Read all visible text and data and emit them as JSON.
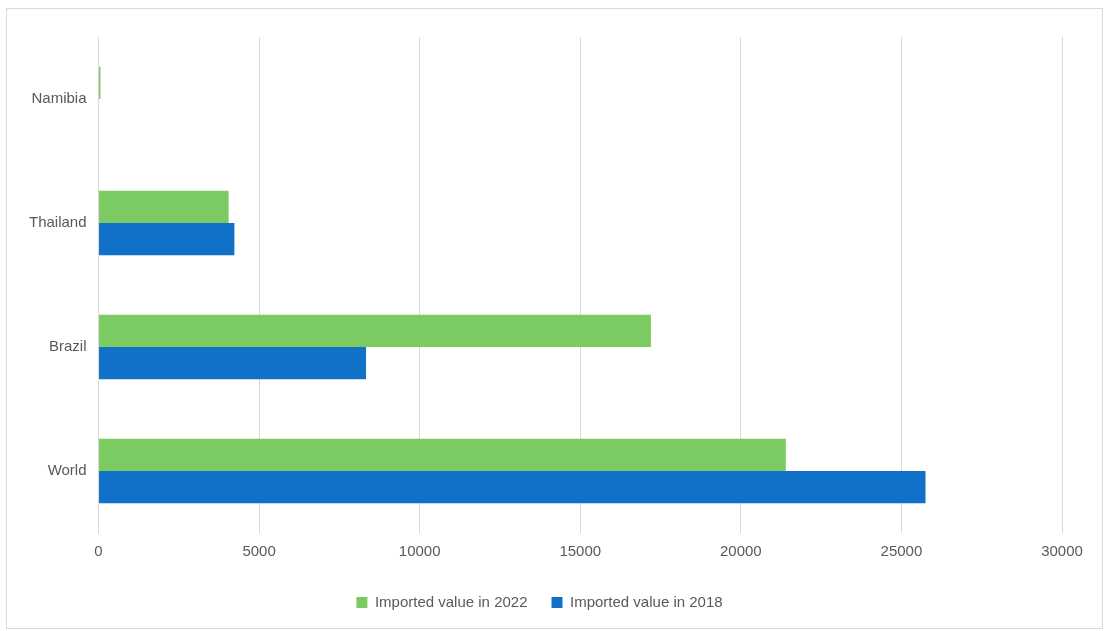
{
  "chart_data": {
    "type": "bar",
    "orientation": "horizontal",
    "categories": [
      "Namibia",
      "Thailand",
      "Brazil",
      "World"
    ],
    "series": [
      {
        "name": "Imported value in 2022",
        "color": "#7cca62",
        "values": [
          60,
          4050,
          17200,
          21400
        ]
      },
      {
        "name": "Imported value in 2018",
        "color": "#1170c8",
        "values": [
          0,
          4230,
          8330,
          25750
        ]
      }
    ],
    "xlim": [
      0,
      30000
    ],
    "xticks": [
      0,
      5000,
      10000,
      15000,
      20000,
      25000,
      30000
    ],
    "grid": "x",
    "legend": "bottom"
  }
}
